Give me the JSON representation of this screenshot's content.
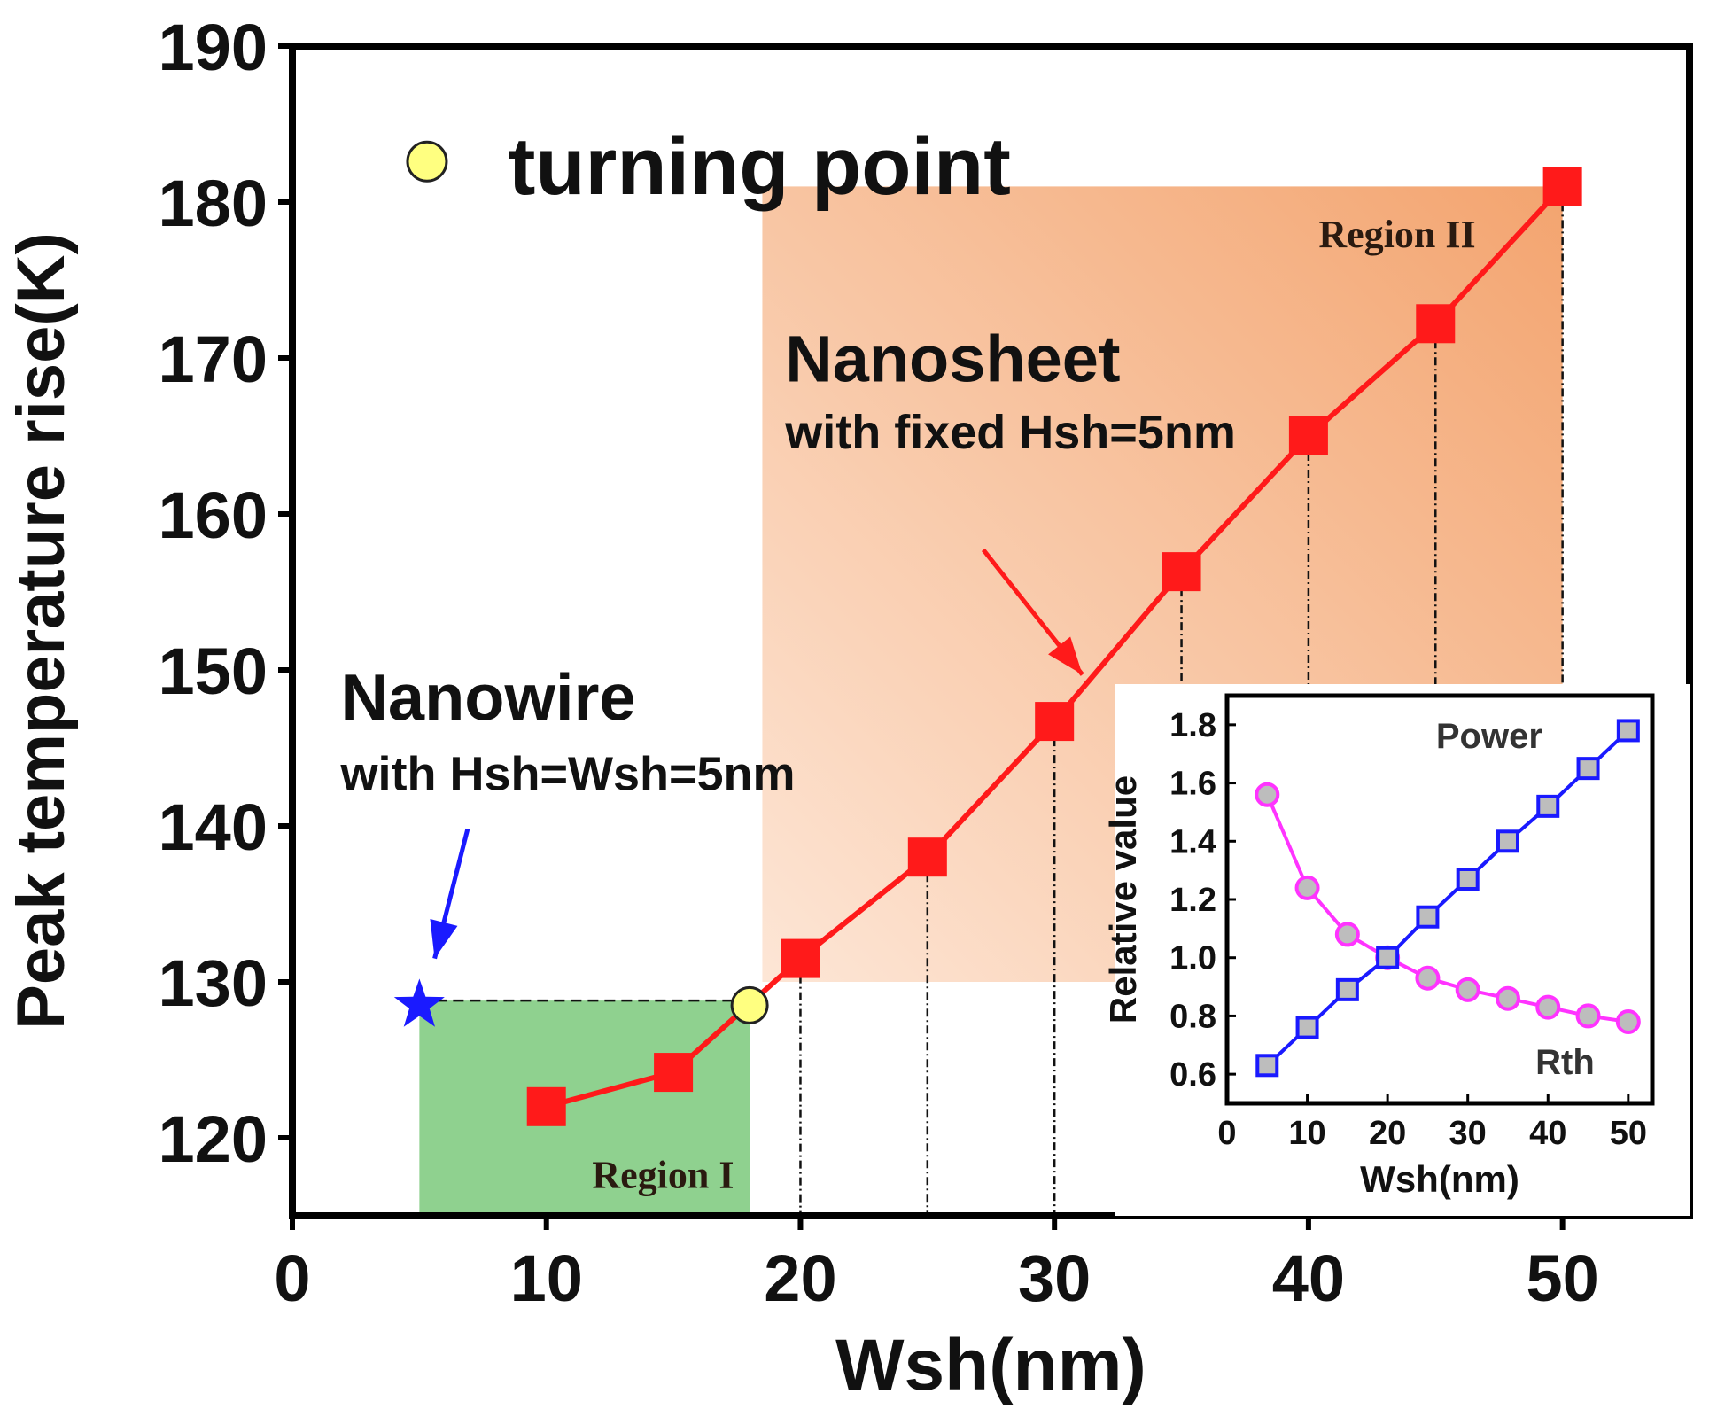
{
  "chart_data": [
    {
      "type": "line",
      "xlabel": "Wsh(nm)",
      "ylabel": "Peak temperature rise(K)",
      "xlim": [
        0,
        55
      ],
      "ylim": [
        115,
        190
      ],
      "xticks": [
        0,
        10,
        20,
        30,
        40,
        50
      ],
      "yticks": [
        120,
        130,
        140,
        150,
        160,
        170,
        180,
        190
      ],
      "series": [
        {
          "name": "Nanosheet",
          "x": [
            10,
            15,
            20,
            25,
            30,
            35,
            40,
            45,
            50
          ],
          "values": [
            122,
            124.2,
            131.5,
            138,
            146.7,
            156.3,
            165,
            172.2,
            181
          ],
          "color": "#ff1a1a"
        },
        {
          "name": "Nanowire",
          "x": [
            5
          ],
          "values": [
            128.5
          ],
          "color": "#1a1aff"
        }
      ],
      "turning_point": {
        "x": 18,
        "y": 128.5,
        "color": "#ffff80"
      },
      "regions": [
        {
          "label": "Region I",
          "x": [
            5,
            18
          ],
          "y": [
            115,
            128.8
          ],
          "color": "#8fd18f"
        },
        {
          "label": "Region II",
          "x": [
            18.5,
            50
          ],
          "y": [
            130,
            181
          ],
          "color": "#f4a672"
        }
      ],
      "annotations": {
        "legend_turning": "turning point",
        "nanosheet_title": "Nanosheet",
        "nanosheet_sub": "with fixed Hsh=5nm",
        "nanowire_title": "Nanowire",
        "nanowire_sub": "with Hsh=Wsh=5nm"
      }
    },
    {
      "type": "line",
      "xlabel": "Wsh(nm)",
      "ylabel": "Relative value",
      "xlim": [
        0,
        53
      ],
      "ylim": [
        0.5,
        1.9
      ],
      "xticks": [
        0,
        10,
        20,
        30,
        40,
        50
      ],
      "yticks": [
        0.6,
        0.8,
        1.0,
        1.2,
        1.4,
        1.6,
        1.8
      ],
      "ytick_labels": [
        "0.6",
        "0.8",
        "1.0",
        "1.2",
        "1.4",
        "1.6",
        "1.8"
      ],
      "series": [
        {
          "name": "Power",
          "x": [
            5,
            10,
            15,
            20,
            25,
            30,
            35,
            40,
            45,
            50
          ],
          "values": [
            0.63,
            0.76,
            0.89,
            1.0,
            1.14,
            1.27,
            1.4,
            1.52,
            1.65,
            1.78
          ],
          "color": "#1a1aff"
        },
        {
          "name": "Rth",
          "x": [
            5,
            10,
            15,
            20,
            25,
            30,
            35,
            40,
            45,
            50
          ],
          "values": [
            1.56,
            1.24,
            1.08,
            1.0,
            0.93,
            0.89,
            0.86,
            0.83,
            0.8,
            0.78
          ],
          "color": "#ff33ff"
        }
      ]
    }
  ]
}
